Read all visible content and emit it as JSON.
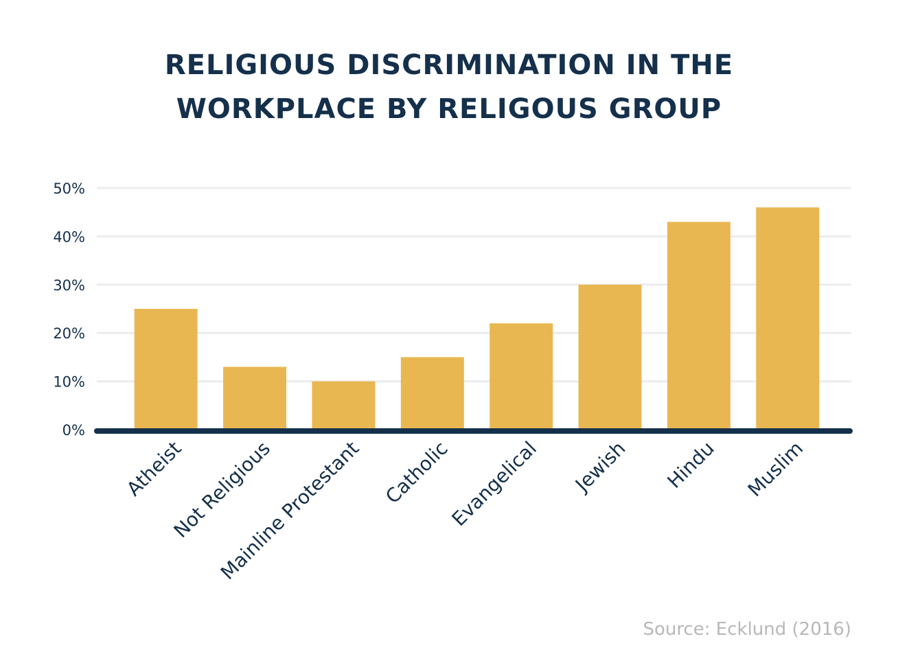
{
  "chart_data": {
    "type": "bar",
    "title": [
      "RELIGIOUS DISCRIMINATION IN THE",
      "WORKPLACE BY RELIGOUS GROUP"
    ],
    "categories": [
      "Atheist",
      "Not Religious",
      "Mainline Protestant",
      "Catholic",
      "Evangelical",
      "Jewish",
      "Hindu",
      "Muslim"
    ],
    "values": [
      25,
      13,
      10,
      15,
      22,
      30,
      43,
      46
    ],
    "y_ticks": [
      "0%",
      "10%",
      "20%",
      "30%",
      "40%",
      "50%"
    ],
    "ylim": [
      0,
      50
    ],
    "grid": true,
    "legend": "none",
    "source": "Source: Ecklund (2016)",
    "colors": {
      "bar": "#e9b752",
      "text": "#15304b",
      "grid": "#ececec",
      "axis": "#15304b",
      "source": "#b8b8b8"
    }
  }
}
